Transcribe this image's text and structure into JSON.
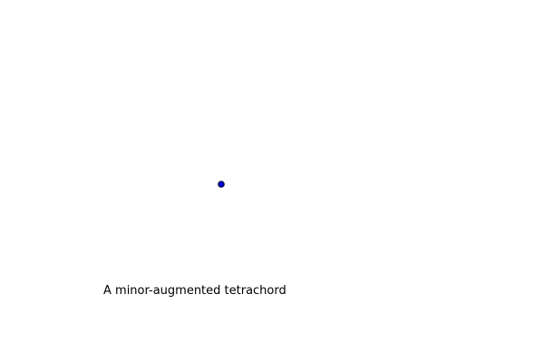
{
  "diagram": {
    "caption": "A minor-augmented tetrachord",
    "point_fill": "#0000cc",
    "point_stroke": "#000033"
  }
}
